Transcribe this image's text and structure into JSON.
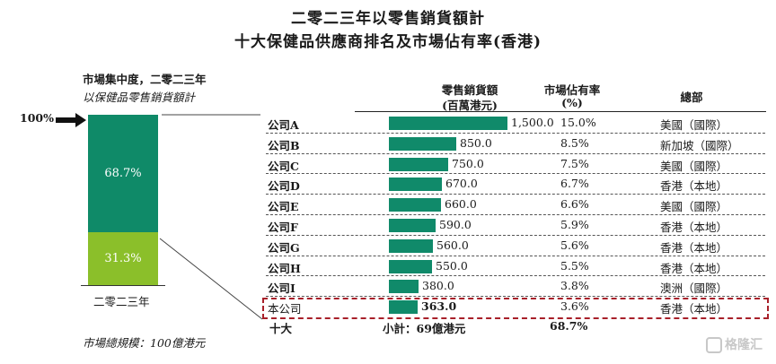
{
  "title_line1": "二零二三年以零售銷貨額計",
  "title_line2": "十大保健品供應商排名及市場佔有率(香港)",
  "left_panel": {
    "heading1": "市場集中度，二零二三年",
    "heading2": "以保健品零售銷貨額計",
    "pointer_label": "100%",
    "stack_values": [
      68.7,
      31.3
    ],
    "stack_labels": [
      "68.7%",
      "31.3%"
    ],
    "x_label": "二零二三年",
    "market_size": "市場總規模：100億港元"
  },
  "table": {
    "headers": {
      "sales_line1": "零售銷貨額",
      "sales_line2": "(百萬港元)",
      "share_line1": "市場佔有率",
      "share_line2": "(%)",
      "hq": "總部"
    },
    "footer": {
      "label": "十大",
      "subtotal": "小計：69億港元",
      "share": "68.7%"
    }
  },
  "chart_data": {
    "type": "bar",
    "categories": [
      "公司A",
      "公司B",
      "公司C",
      "公司D",
      "公司E",
      "公司F",
      "公司G",
      "公司H",
      "公司I",
      "本公司"
    ],
    "values": [
      1500.0,
      850.0,
      750.0,
      670.0,
      660.0,
      590.0,
      560.0,
      550.0,
      380.0,
      363.0
    ],
    "value_labels": [
      "1,500.0",
      "850.0",
      "750.0",
      "670.0",
      "660.0",
      "590.0",
      "560.0",
      "550.0",
      "380.0",
      "363.0"
    ],
    "shares": [
      "15.0%",
      "8.5%",
      "7.5%",
      "6.7%",
      "6.6%",
      "5.9%",
      "5.6%",
      "5.5%",
      "3.8%",
      "3.6%"
    ],
    "headquarters": [
      "美國（國際）",
      "新加坡（國際）",
      "美國（國際）",
      "香港（本地）",
      "美國（國際）",
      "香港（本地）",
      "香港（本地）",
      "香港（本地）",
      "澳洲（國際）",
      "香港（本地）"
    ],
    "highlight_index": 9,
    "bar_color": "#108a6a",
    "highlight_color": "#a8202a",
    "title": "",
    "xlabel": "",
    "ylabel": "零售銷貨額(百萬港元)",
    "xlim": [
      0,
      1500
    ]
  },
  "colors": {
    "stack_top": "#0f8a68",
    "stack_bottom": "#8bbf2a"
  },
  "watermark": "格隆汇"
}
